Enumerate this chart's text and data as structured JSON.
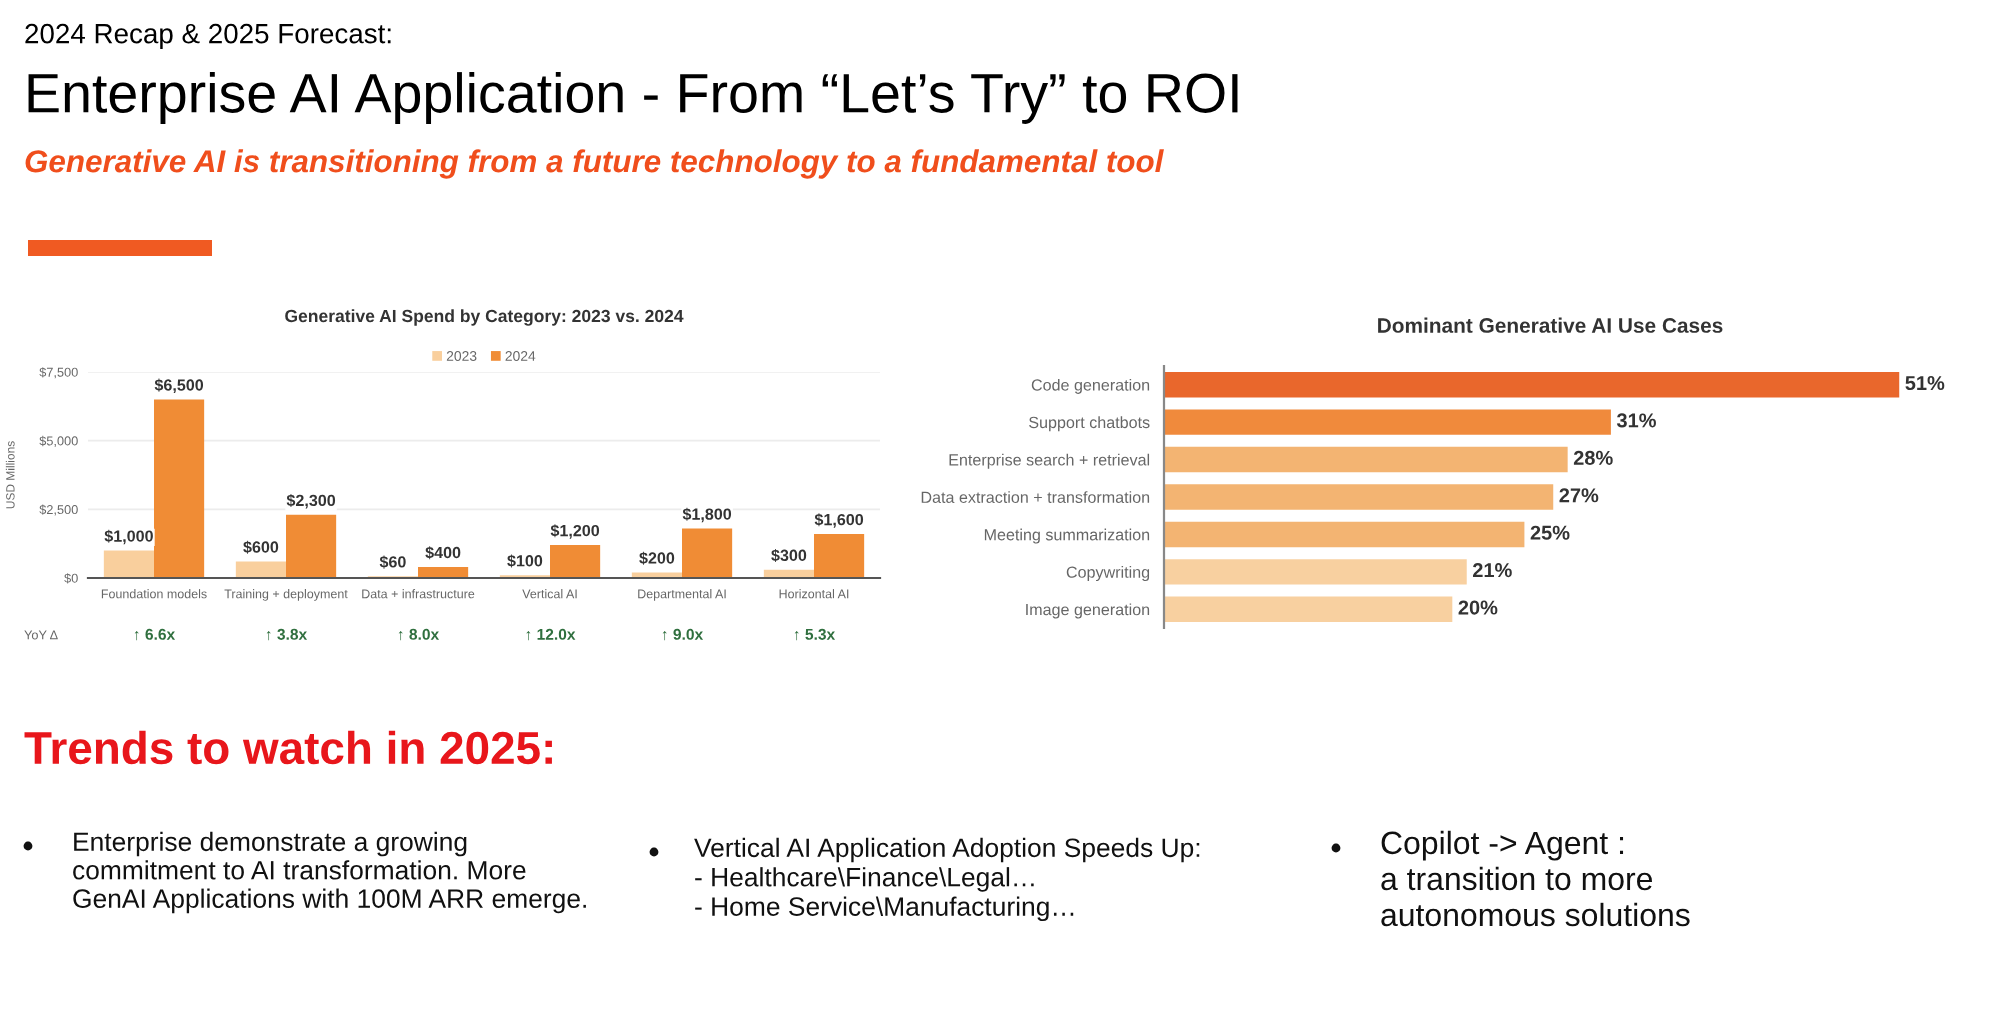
{
  "chart_data": [
    {
      "type": "other",
      "title": "Enterprise AI Application - From “Let’s Try” to ROI",
      "subtitle": "Generative AI is transitioning from a future technology to a fundamental tool",
      "annotations": [
        "2024 Recap & 2025 Forecast:"
      ]
    },
    {
      "type": "bar",
      "title": "Generative AI Spend by Category: 2023 vs. 2024",
      "categories": [
        "Foundation models",
        "Training + deployment",
        "Data + infrastructure",
        "Vertical AI",
        "Departmental AI",
        "Horizontal AI"
      ],
      "series": [
        {
          "name": "2023",
          "color": "#f9cf9d",
          "values": [
            1000,
            600,
            60,
            100,
            200,
            300
          ],
          "value_labels": [
            "$1,000",
            "$600",
            "$60",
            "$100",
            "$200",
            "$300"
          ]
        },
        {
          "name": "2024",
          "color": "#f08c35",
          "values": [
            6500,
            2300,
            400,
            1200,
            1800,
            1600
          ],
          "value_labels": [
            "$6,500",
            "$2,300",
            "$400",
            "$1,200",
            "$1,800",
            "$1,600"
          ]
        }
      ],
      "ylabel": "USD Millions",
      "ylim": [
        0,
        7500
      ],
      "yticks": [
        {
          "value": 0,
          "label": "$0"
        },
        {
          "value": 2500,
          "label": "$2,500"
        },
        {
          "value": 5000,
          "label": "$5,000"
        },
        {
          "value": 7500,
          "label": "$7,500"
        }
      ],
      "grid": "y",
      "legend": "top",
      "annotations": [
        "YoY Δ",
        "↑ 6.6x",
        "↑ 3.8x",
        "↑ 8.0x",
        "↑ 12.0x",
        "↑ 9.0x",
        "↑ 5.3x"
      ]
    },
    {
      "type": "bar",
      "orientation": "horizontal",
      "title": "Dominant Generative AI Use Cases",
      "categories": [
        "Code generation",
        "Support chatbots",
        "Enterprise search + retrieval",
        "Data extraction + transformation",
        "Meeting summarization",
        "Copywriting",
        "Image generation"
      ],
      "values": [
        51,
        31,
        28,
        27,
        25,
        21,
        20
      ],
      "colors": [
        "#e9672c",
        "#f08a3c",
        "#f3b472",
        "#f3b472",
        "#f3b472",
        "#f8d0a0",
        "#f8d0a0"
      ],
      "value_labels": [
        "51%",
        "31%",
        "28%",
        "27%",
        "25%",
        "21%",
        "20%"
      ],
      "tick_labels": "y"
    },
    {
      "type": "other",
      "title": "Trends to watch in 2025:",
      "annotations": [
        "Enterprise demonstrate a growing\ncommitment to AI transformation. More\nGenAI Applications with 100M ARR emerge.",
        "Vertical AI Application Adoption Speeds Up:\n- Healthcare\\Finance\\Legal…\n- Home Service\\Manufacturing…",
        "Copilot -> Agent :\na transition to more\nautonomous solutions"
      ]
    }
  ]
}
